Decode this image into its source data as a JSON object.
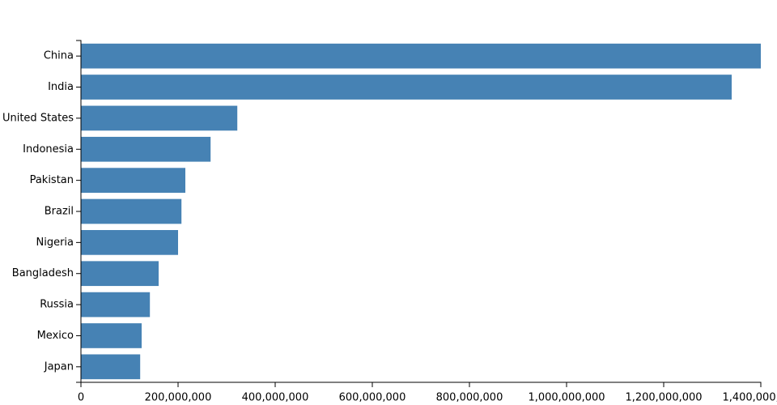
{
  "chart_data": {
    "type": "bar",
    "orientation": "horizontal",
    "color": "#4682b4",
    "categories": [
      "China",
      "India",
      "United States",
      "Indonesia",
      "Pakistan",
      "Brazil",
      "Nigeria",
      "Bangladesh",
      "Russia",
      "Mexico",
      "Japan"
    ],
    "values": [
      1400000000,
      1340000000,
      322000000,
      267000000,
      215000000,
      207000000,
      200000000,
      160000000,
      142000000,
      125000000,
      122000000
    ],
    "xlim": [
      0,
      1400000000
    ],
    "xticks": [
      0,
      {
        "value": 200000000,
        "label": "200,000,000"
      },
      {
        "value": 400000000,
        "label": "400,000,000"
      },
      {
        "value": 600000000,
        "label": "600,000,000"
      },
      {
        "value": 800000000,
        "label": "800,000,000"
      },
      {
        "value": 1000000000,
        "label": "1,000,000,000"
      },
      {
        "value": 1200000000,
        "label": "1,200,000,000"
      },
      {
        "value": 1400000000,
        "label": "1,400,000,000"
      }
    ]
  }
}
